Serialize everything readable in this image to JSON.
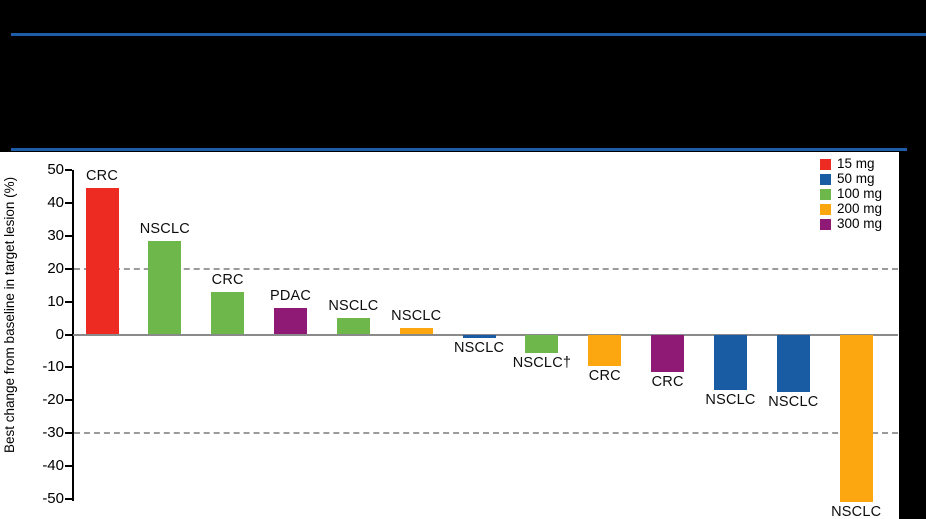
{
  "header": {
    "rule_color": "#1E5EA9"
  },
  "colors": {
    "15 mg": "#EE2B23",
    "50 mg": "#1A5CA4",
    "100 mg": "#6EB84B",
    "200 mg": "#FCA70F",
    "300 mg": "#8E1A75"
  },
  "legend": {
    "items": [
      {
        "label": "15 mg",
        "color": "#EE2B23"
      },
      {
        "label": "50 mg",
        "color": "#1A5CA4"
      },
      {
        "label": "100 mg",
        "color": "#6EB84B"
      },
      {
        "label": "200 mg",
        "color": "#FCA70F"
      },
      {
        "label": "300 mg",
        "color": "#8E1A75"
      }
    ]
  },
  "chart_data": {
    "type": "bar",
    "title": "",
    "ylabel": "Best change from baseline in target lesion (%)",
    "ylim": [
      -50,
      50
    ],
    "yticks": [
      50,
      40,
      30,
      20,
      10,
      0,
      -10,
      -20,
      -30,
      -40,
      -50
    ],
    "reference_lines": [
      20,
      -30
    ],
    "grid": "dashed-reference-only",
    "legend_position": "top-right",
    "bars": [
      {
        "label": "CRC",
        "dose": "15 mg",
        "value": 44.5
      },
      {
        "label": "NSCLC",
        "dose": "100 mg",
        "value": 28.5
      },
      {
        "label": "CRC",
        "dose": "100 mg",
        "value": 13
      },
      {
        "label": "PDAC",
        "dose": "300 mg",
        "value": 8
      },
      {
        "label": "NSCLC",
        "dose": "100 mg",
        "value": 5
      },
      {
        "label": "NSCLC",
        "dose": "200 mg",
        "value": 2
      },
      {
        "label": "NSCLC",
        "dose": "50 mg",
        "value": -1
      },
      {
        "label": "NSCLC†",
        "dose": "100 mg",
        "value": -5.5
      },
      {
        "label": "CRC",
        "dose": "200 mg",
        "value": -9.5
      },
      {
        "label": "CRC",
        "dose": "300 mg",
        "value": -11.5
      },
      {
        "label": "NSCLC",
        "dose": "50 mg",
        "value": -17
      },
      {
        "label": "NSCLC",
        "dose": "50 mg",
        "value": -17.5
      },
      {
        "label": "NSCLC",
        "dose": "200 mg",
        "value": -51
      }
    ]
  }
}
